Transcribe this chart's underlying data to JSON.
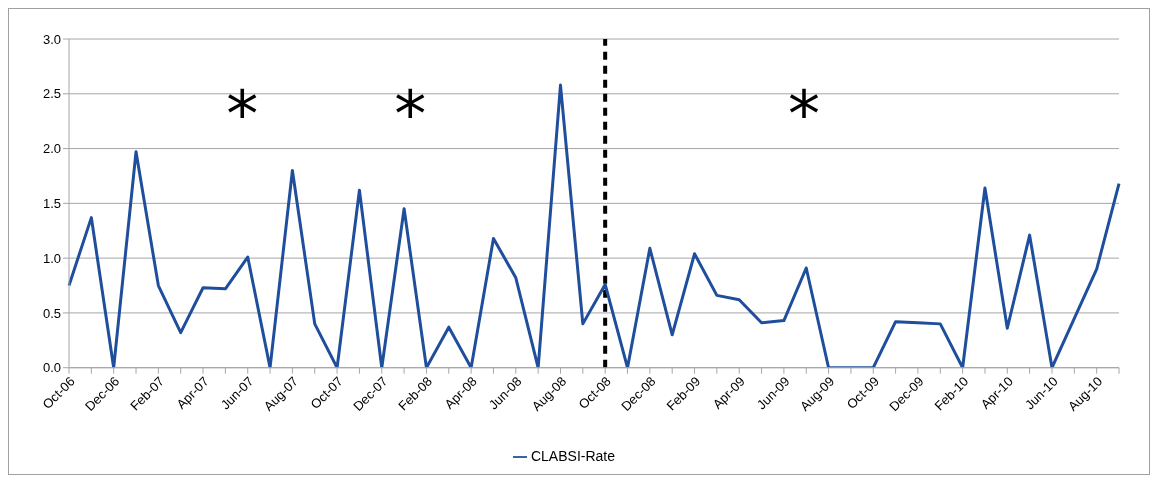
{
  "chart_data": {
    "type": "line",
    "categories": [
      "Oct-06",
      null,
      "Dec-06",
      null,
      "Feb-07",
      null,
      "Apr-07",
      null,
      "Jun-07",
      null,
      "Aug-07",
      null,
      "Oct-07",
      null,
      "Dec-07",
      null,
      "Feb-08",
      null,
      "Apr-08",
      null,
      "Jun-08",
      null,
      "Aug-08",
      null,
      "Oct-08",
      null,
      "Dec-08",
      null,
      "Feb-09",
      null,
      "Apr-09",
      null,
      "Jun-09",
      null,
      "Aug-09",
      null,
      "Oct-09",
      null,
      "Dec-09",
      null,
      "Feb-10",
      null,
      "Apr-10",
      null,
      "Jun-10",
      null,
      "Aug-10",
      null
    ],
    "series": [
      {
        "name": "CLABSI-Rate",
        "color": "#1f4e9c",
        "values": [
          0.75,
          1.37,
          0,
          1.97,
          0.75,
          0.32,
          0.73,
          0.72,
          1.01,
          0,
          1.8,
          0.4,
          0,
          1.62,
          0,
          1.45,
          0,
          0.37,
          0,
          1.18,
          0.82,
          0,
          2.58,
          0.4,
          0.76,
          0,
          1.09,
          0.3,
          1.04,
          0.66,
          0.62,
          0.41,
          0.43,
          0.91,
          0,
          0,
          0,
          0.42,
          0.41,
          0.4,
          0,
          1.64,
          0.36,
          1.21,
          0,
          0.45,
          0.9,
          1.68
        ]
      }
    ],
    "ylim": [
      0,
      3
    ],
    "yticks": [
      {
        "value": 0,
        "label": "0.0"
      },
      {
        "value": 0.5,
        "label": "0.5"
      },
      {
        "value": 1,
        "label": "1.0"
      },
      {
        "value": 1.5,
        "label": "1.5"
      },
      {
        "value": 2,
        "label": "2.0"
      },
      {
        "value": 2.5,
        "label": "2.5"
      },
      {
        "value": 3,
        "label": "3.0"
      }
    ],
    "grid": "y",
    "legend": "bottom",
    "marker": "none",
    "line_style": "solid",
    "ref_lines": [
      {
        "axis": "x",
        "value": "Oct-08",
        "color": "#000000",
        "line_style": "dashed"
      }
    ],
    "annotations": [
      "*",
      "*",
      "*"
    ]
  }
}
